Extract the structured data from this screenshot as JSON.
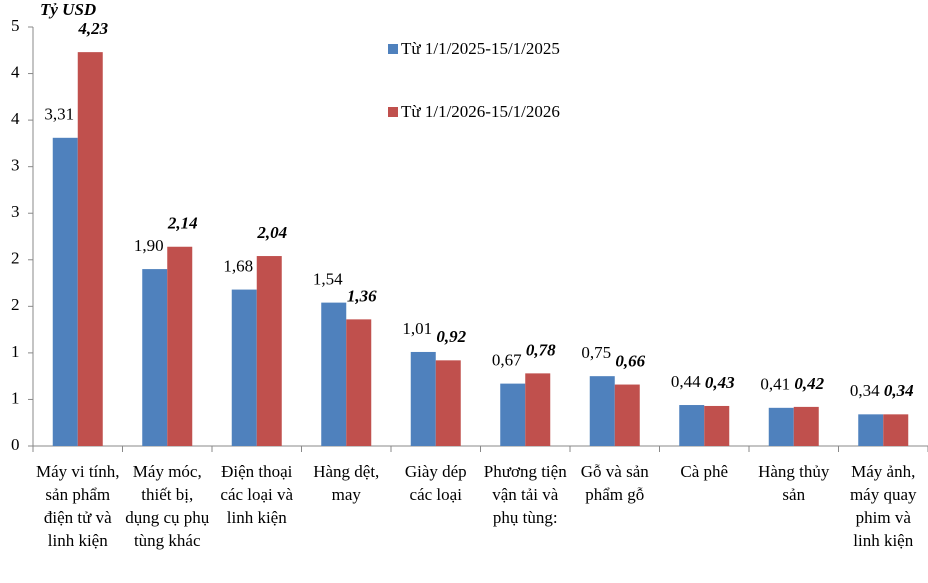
{
  "chart_data": {
    "type": "bar",
    "y_label": "Tỷ USD",
    "categories": [
      "Máy vi tính, sản phẩm điện tử và linh kiện",
      "Máy móc, thiết bị, dụng cụ phụ tùng khác",
      "Điện thoại các loại và linh kiện",
      "Hàng dệt, may",
      "Giày dép các loại",
      "Phương tiện vận tải và phụ tùng:",
      "Gỗ và sản phẩm gỗ",
      "Cà phê",
      "Hàng thủy sản",
      "Máy ảnh, máy quay phim và linh kiện"
    ],
    "series": [
      {
        "name": "Từ 1/1/2025-15/1/2025",
        "color": "#4f81bd",
        "values": [
          3.31,
          1.9,
          1.68,
          1.54,
          1.01,
          0.67,
          0.75,
          0.44,
          0.41,
          0.34
        ],
        "value_labels": [
          "3,31",
          "1,90",
          "1,68",
          "1,54",
          "1,01",
          "0,67",
          "0,75",
          "0,44",
          "0,41",
          "0,34"
        ]
      },
      {
        "name": "Từ 1/1/2026-15/1/2026",
        "color": "#c0504d",
        "values": [
          4.23,
          2.14,
          2.04,
          1.36,
          0.92,
          0.78,
          0.66,
          0.43,
          0.42,
          0.34
        ],
        "value_labels": [
          "4,23",
          "2,14",
          "2,04",
          "1,36",
          "0,92",
          "0,78",
          "0,66",
          "0,43",
          "0,42",
          "0,34"
        ]
      }
    ],
    "ylim": [
      0,
      4.5
    ],
    "yticks": [
      0,
      {
        "value": 0.5,
        "label": "1"
      },
      1,
      {
        "value": 1.5,
        "label": "2"
      },
      2,
      {
        "value": 2.5,
        "label": "3"
      },
      3,
      {
        "value": 3.5,
        "label": "4"
      },
      4,
      {
        "value": 4.5,
        "label": "5"
      }
    ],
    "legend": "top-center",
    "grid": false
  }
}
